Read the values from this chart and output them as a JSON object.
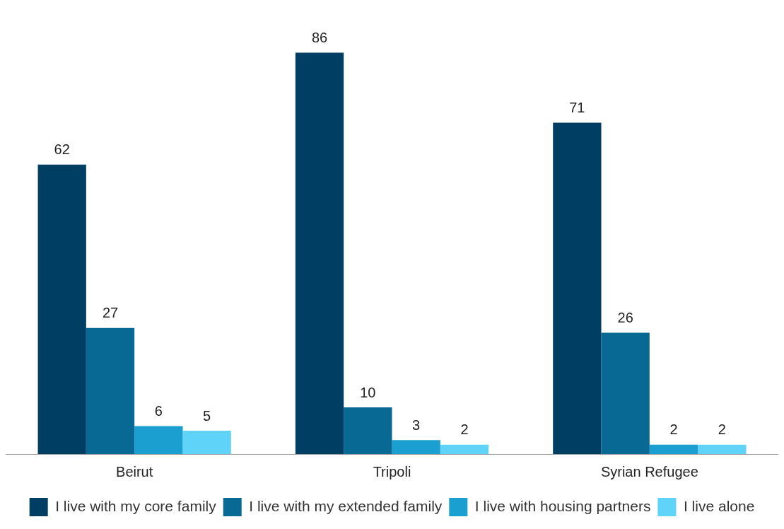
{
  "chart_data": {
    "type": "bar",
    "categories": [
      "Beirut",
      "Tripoli",
      "Syrian Refugee"
    ],
    "series": [
      {
        "name": "I live with my core family",
        "color": "#003f63",
        "values": [
          62,
          86,
          71
        ]
      },
      {
        "name": "I live with my extended family",
        "color": "#086a94",
        "values": [
          27,
          10,
          26
        ]
      },
      {
        "name": "I live with housing partners",
        "color": "#1b9fd0",
        "values": [
          6,
          3,
          2
        ]
      },
      {
        "name": "I live alone",
        "color": "#5fd3f8",
        "values": [
          5,
          2,
          2
        ]
      }
    ],
    "data_labels": true,
    "grid": false,
    "legend": "bottom"
  }
}
